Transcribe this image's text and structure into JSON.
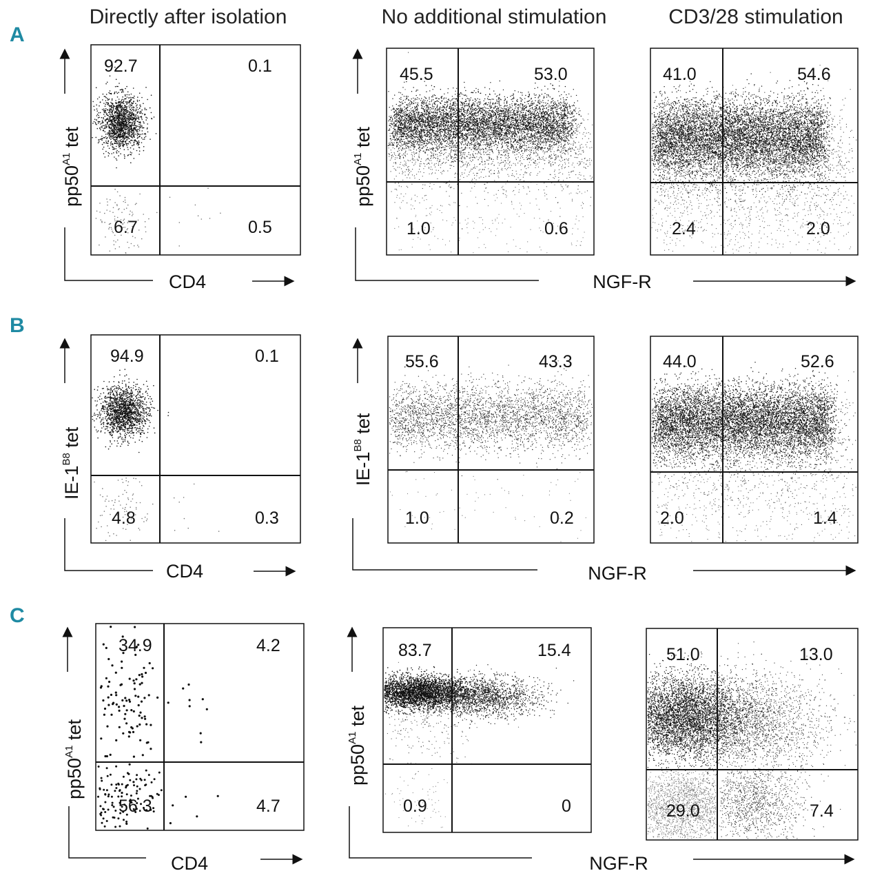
{
  "column_titles": [
    "Directly after isolation",
    "No additional stimulation",
    "CD3/28 stimulation"
  ],
  "rows": [
    {
      "letter": "A",
      "y_label": "pp50",
      "y_label_sup": "A1",
      "y_label_tail": " tet",
      "panels": [
        {
          "x_label": "CD4",
          "quadrants": {
            "ul": "92.7",
            "ur": "0.1",
            "ll": "6.7",
            "lr": "0.5"
          }
        },
        {
          "quadrants": {
            "ul": "45.5",
            "ur": "53.0",
            "ll": "1.0",
            "lr": "0.6"
          }
        },
        {
          "quadrants": {
            "ul": "41.0",
            "ur": "54.6",
            "ll": "2.4",
            "lr": "2.0"
          }
        }
      ],
      "shared_x_label": "NGF-R"
    },
    {
      "letter": "B",
      "y_label": "IE-1",
      "y_label_sup": "B8",
      "y_label_tail": " tet",
      "panels": [
        {
          "x_label": "CD4",
          "quadrants": {
            "ul": "94.9",
            "ur": "0.1",
            "ll": "4.8",
            "lr": "0.3"
          }
        },
        {
          "quadrants": {
            "ul": "55.6",
            "ur": "43.3",
            "ll": "1.0",
            "lr": "0.2"
          }
        },
        {
          "quadrants": {
            "ul": "44.0",
            "ur": "52.6",
            "ll": "2.0",
            "lr": "1.4"
          }
        }
      ],
      "shared_x_label": "NGF-R"
    },
    {
      "letter": "C",
      "y_label": "pp50",
      "y_label_sup": "A1",
      "y_label_tail": " tet",
      "panels": [
        {
          "x_label": "CD4",
          "quadrants": {
            "ul": "34.9",
            "ur": "4.2",
            "ll": "56.3",
            "lr": "4.7"
          }
        },
        {
          "quadrants": {
            "ul": "83.7",
            "ur": "15.4",
            "ll": "0.9",
            "lr": "0"
          }
        },
        {
          "quadrants": {
            "ul": "51.0",
            "ur": "13.0",
            "ll": "29.0",
            "lr": "7.4"
          }
        }
      ],
      "shared_x_label": "NGF-R"
    }
  ],
  "chart_data": [
    {
      "type": "scatter",
      "row": "A",
      "x_axis": "CD4",
      "y_axis": "pp50A1 tet",
      "quadrant_percent": {
        "upper_left": 92.7,
        "upper_right": 0.1,
        "lower_left": 6.7,
        "lower_right": 0.5
      }
    },
    {
      "type": "scatter",
      "row": "A",
      "condition": "No additional stimulation",
      "x_axis": "NGF-R",
      "y_axis": "pp50A1 tet",
      "quadrant_percent": {
        "upper_left": 45.5,
        "upper_right": 53.0,
        "lower_left": 1.0,
        "lower_right": 0.6
      }
    },
    {
      "type": "scatter",
      "row": "A",
      "condition": "CD3/28 stimulation",
      "x_axis": "NGF-R",
      "y_axis": "pp50A1 tet",
      "quadrant_percent": {
        "upper_left": 41.0,
        "upper_right": 54.6,
        "lower_left": 2.4,
        "lower_right": 2.0
      }
    },
    {
      "type": "scatter",
      "row": "B",
      "x_axis": "CD4",
      "y_axis": "IE-1B8 tet",
      "quadrant_percent": {
        "upper_left": 94.9,
        "upper_right": 0.1,
        "lower_left": 4.8,
        "lower_right": 0.3
      }
    },
    {
      "type": "scatter",
      "row": "B",
      "condition": "No additional stimulation",
      "x_axis": "NGF-R",
      "y_axis": "IE-1B8 tet",
      "quadrant_percent": {
        "upper_left": 55.6,
        "upper_right": 43.3,
        "lower_left": 1.0,
        "lower_right": 0.2
      }
    },
    {
      "type": "scatter",
      "row": "B",
      "condition": "CD3/28 stimulation",
      "x_axis": "NGF-R",
      "y_axis": "IE-1B8 tet",
      "quadrant_percent": {
        "upper_left": 44.0,
        "upper_right": 52.6,
        "lower_left": 2.0,
        "lower_right": 1.4
      }
    },
    {
      "type": "scatter",
      "row": "C",
      "x_axis": "CD4",
      "y_axis": "pp50A1 tet",
      "quadrant_percent": {
        "upper_left": 34.9,
        "upper_right": 4.2,
        "lower_left": 56.3,
        "lower_right": 4.7
      }
    },
    {
      "type": "scatter",
      "row": "C",
      "condition": "No additional stimulation",
      "x_axis": "NGF-R",
      "y_axis": "pp50A1 tet",
      "quadrant_percent": {
        "upper_left": 83.7,
        "upper_right": 15.4,
        "lower_left": 0.9,
        "lower_right": 0
      }
    },
    {
      "type": "scatter",
      "row": "C",
      "condition": "CD3/28 stimulation",
      "x_axis": "NGF-R",
      "y_axis": "pp50A1 tet",
      "quadrant_percent": {
        "upper_left": 51.0,
        "upper_right": 13.0,
        "lower_left": 29.0,
        "lower_right": 7.4
      }
    }
  ]
}
